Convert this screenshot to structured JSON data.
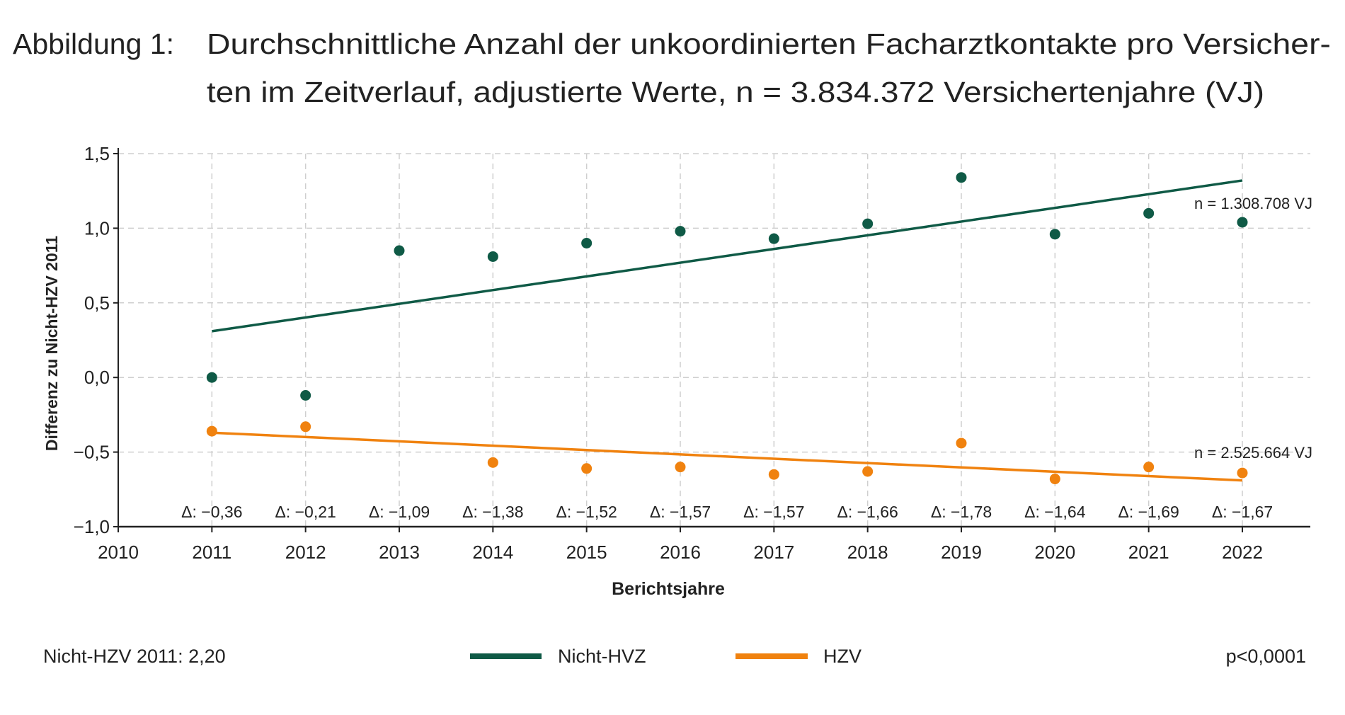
{
  "chart_data": {
    "type": "scatter",
    "title_prefix": "Abbildung 1:",
    "title_line1": "Durchschnittliche Anzahl der unkoordinierten Facharztkontakte pro Versicher-",
    "title_line2": "ten im Zeitverlauf, adjustierte Werte, n = 3.834.372 Versichertenjahre (VJ)",
    "xlabel": "Berichtsjahre",
    "ylabel": "Differenz zu Nicht-HZV 2011",
    "xlim": [
      2010,
      2022
    ],
    "ylim": [
      -1.0,
      1.5
    ],
    "x_ticks": [
      "2010",
      "2011",
      "2012",
      "2013",
      "2014",
      "2015",
      "2016",
      "2017",
      "2018",
      "2019",
      "2020",
      "2021",
      "2022"
    ],
    "y_ticks": [
      "−1,0",
      "−0,5",
      "0,0",
      "0,5",
      "1,0",
      "1,5"
    ],
    "y_tick_values": [
      -1.0,
      -0.5,
      0.0,
      0.5,
      1.0,
      1.5
    ],
    "grid": true,
    "x": [
      2011,
      2012,
      2013,
      2014,
      2015,
      2016,
      2017,
      2018,
      2019,
      2020,
      2021,
      2022
    ],
    "series": [
      {
        "name": "Nicht-HVZ",
        "color": "#0f5a46",
        "values": [
          0.0,
          -0.12,
          0.85,
          0.81,
          0.9,
          0.98,
          0.93,
          1.03,
          1.34,
          0.96,
          1.1,
          1.04
        ],
        "trend": [
          0.31,
          1.32
        ],
        "n_label": "n = 1.308.708 VJ"
      },
      {
        "name": "HZV",
        "color": "#f0820f",
        "values": [
          -0.36,
          -0.33,
          null,
          -0.57,
          -0.61,
          -0.6,
          -0.65,
          -0.63,
          -0.44,
          -0.68,
          -0.6,
          -0.64
        ],
        "trend": [
          -0.37,
          -0.69
        ],
        "n_label": "n = 2.525.664 VJ"
      }
    ],
    "delta_labels": [
      "Δ: −0,36",
      "Δ: −0,21",
      "Δ: −1,09",
      "Δ: −1,38",
      "Δ: −1,52",
      "Δ: −1,57",
      "Δ: −1,57",
      "Δ: −1,66",
      "Δ: −1,78",
      "Δ: −1,64",
      "Δ: −1,69",
      "Δ: −1,67"
    ],
    "legend_placement": "bottom",
    "footnote_left": "Nicht-HZV 2011: 2,20",
    "footnote_right": "p<0,0001"
  }
}
